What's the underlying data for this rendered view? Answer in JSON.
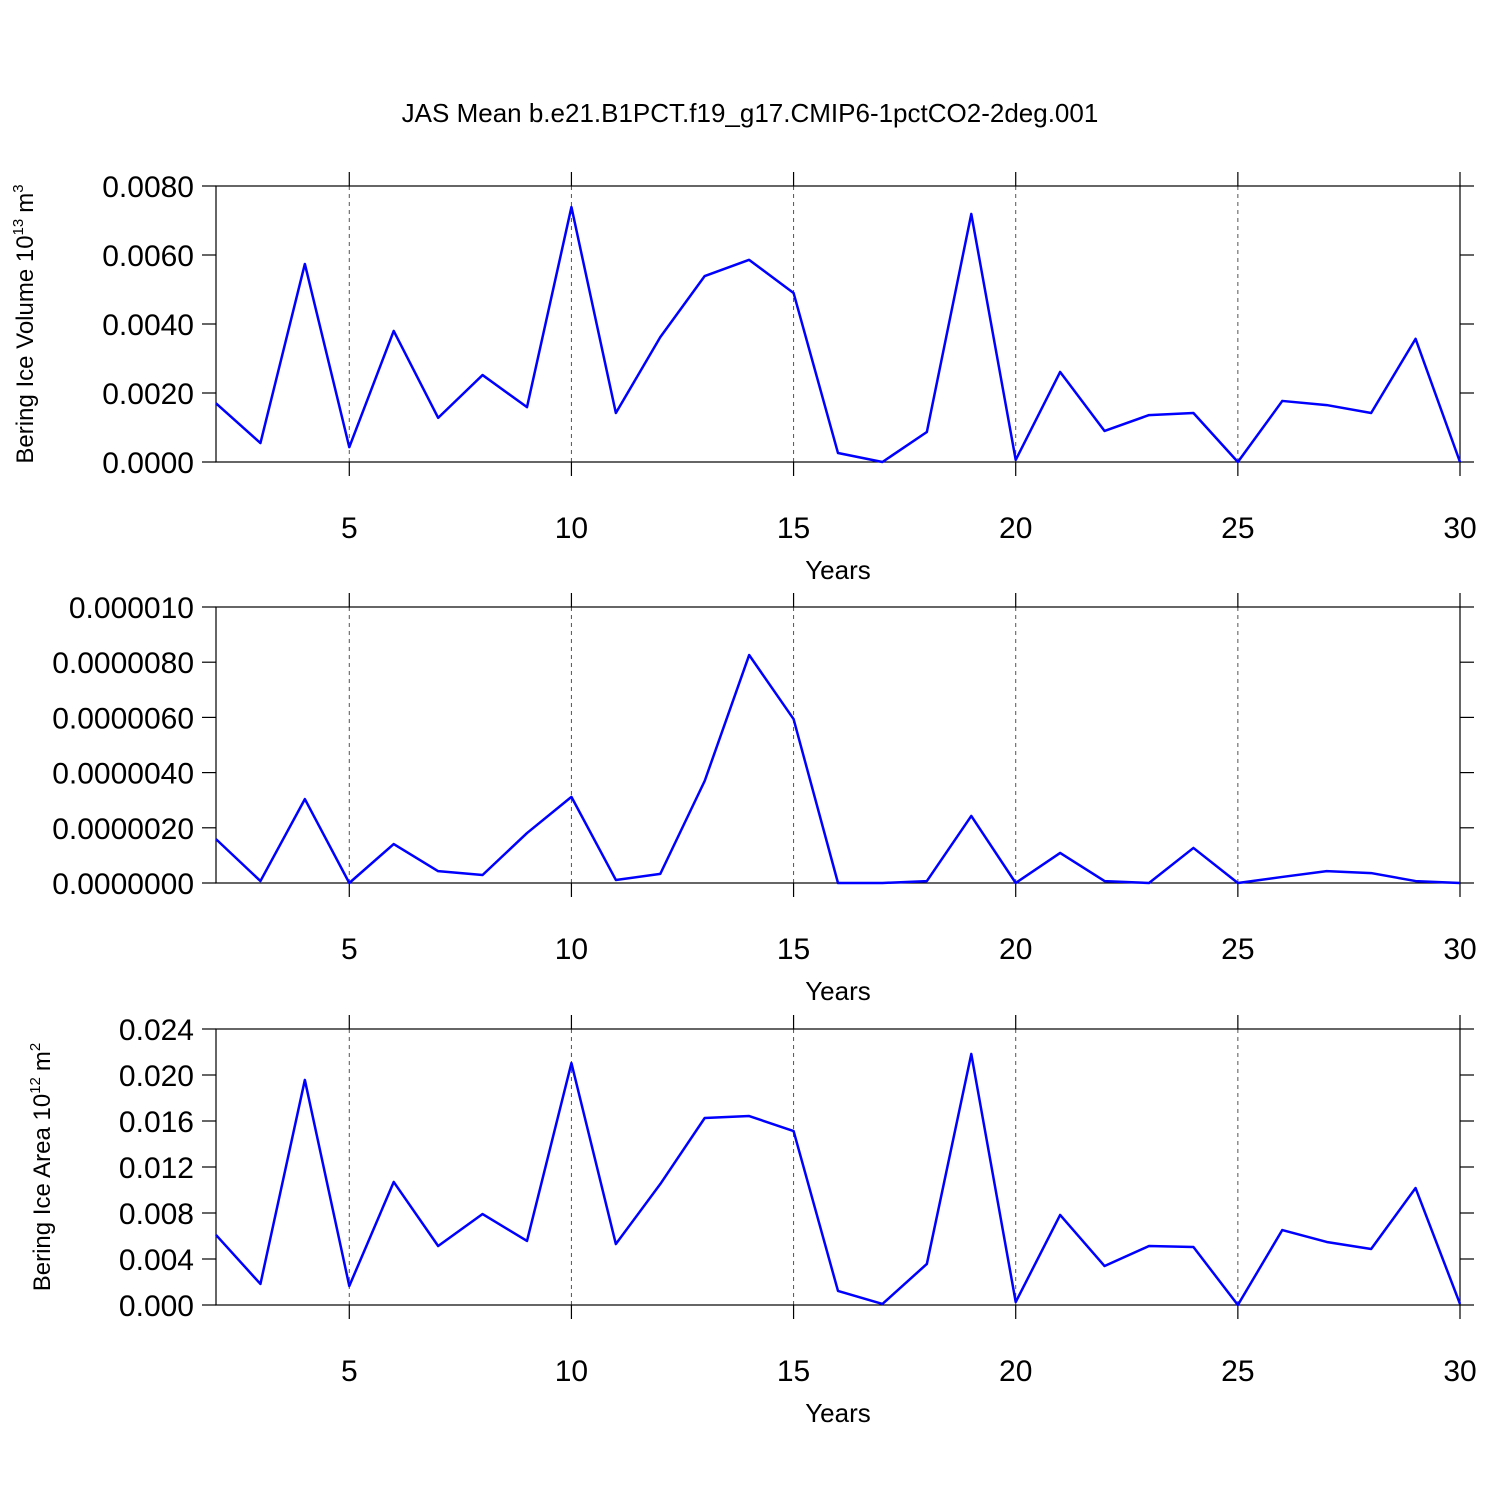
{
  "chart_data": [
    {
      "type": "line",
      "title": "JAS Mean b.e21.B1PCT.f19_g17.CMIP6-1pctCO2-2deg.001",
      "ylabel": {
        "text": "Bering Ice Volume 10",
        "sup": "13",
        "unit": "m",
        "unit_sup": "3"
      },
      "xlabel": "Years",
      "color": "#0000ff",
      "xgrid": true,
      "x": [
        2,
        3,
        4,
        5,
        6,
        7,
        8,
        9,
        10,
        11,
        12,
        13,
        14,
        15,
        16,
        17,
        18,
        19,
        20,
        21,
        22,
        23,
        24,
        25,
        26,
        27,
        28,
        29,
        30
      ],
      "values": [
        0.0017,
        0.00055,
        0.00574,
        0.00043,
        0.0038,
        0.00128,
        0.00252,
        0.00159,
        0.00739,
        0.00142,
        0.00362,
        0.00539,
        0.00586,
        0.0049,
        0.00026,
        0,
        0.00087,
        0.00719,
        6e-05,
        0.00261,
        0.0009,
        0.00136,
        0.00142,
        0,
        0.00177,
        0.00165,
        0.00142,
        0.00357,
        0
      ],
      "xlim": [
        2,
        30
      ],
      "xticks": [
        5,
        10,
        15,
        20,
        25,
        30
      ],
      "ylim": [
        0,
        0.008
      ],
      "yticks": [
        {
          "value": 0,
          "label": "0.0000"
        },
        {
          "value": 0.002,
          "label": "0.0020"
        },
        {
          "value": 0.004,
          "label": "0.0040"
        },
        {
          "value": 0.006,
          "label": "0.0060"
        },
        {
          "value": 0.008,
          "label": "0.0080"
        }
      ]
    },
    {
      "type": "line",
      "xlabel": "Years",
      "color": "#0000ff",
      "xgrid": true,
      "x": [
        2,
        3,
        4,
        5,
        6,
        7,
        8,
        9,
        10,
        11,
        12,
        13,
        14,
        15,
        16,
        17,
        18,
        19,
        20,
        21,
        22,
        23,
        24,
        25,
        26,
        27,
        28,
        29,
        30
      ],
      "values": [
        1.59e-06,
        7e-08,
        3.04e-06,
        0,
        1.41e-06,
        4.3e-07,
        2.9e-07,
        1.81e-06,
        3.12e-06,
        1.1e-07,
        3.3e-07,
        3.7e-06,
        8.26e-06,
        5.94e-06,
        0,
        0,
        7e-08,
        2.43e-06,
        0,
        1.09e-06,
        7e-08,
        0,
        1.27e-06,
        0,
        2.2e-07,
        4.3e-07,
        3.6e-07,
        7e-08,
        0
      ],
      "xlim": [
        2,
        30
      ],
      "xticks": [
        5,
        10,
        15,
        20,
        25,
        30
      ],
      "ylim": [
        0,
        1e-05
      ],
      "yticks": [
        {
          "value": 0,
          "label": "0.0000000"
        },
        {
          "value": 2e-06,
          "label": "0.0000020"
        },
        {
          "value": 4e-06,
          "label": "0.0000040"
        },
        {
          "value": 6e-06,
          "label": "0.0000060"
        },
        {
          "value": 8e-06,
          "label": "0.0000080"
        },
        {
          "value": 1e-05,
          "label": "0.000010"
        }
      ]
    },
    {
      "type": "line",
      "ylabel": {
        "text": "Bering Ice Area 10",
        "sup": "12",
        "unit": "m",
        "unit_sup": "2"
      },
      "xlabel": "Years",
      "color": "#0000ff",
      "xgrid": true,
      "x": [
        2,
        3,
        4,
        5,
        6,
        7,
        8,
        9,
        10,
        11,
        12,
        13,
        14,
        15,
        16,
        17,
        18,
        19,
        20,
        21,
        22,
        23,
        24,
        25,
        26,
        27,
        28,
        29,
        30
      ],
      "values": [
        0.00609,
        0.00183,
        0.01957,
        0.00165,
        0.0107,
        0.00513,
        0.00791,
        0.00557,
        0.02104,
        0.0053,
        0.01052,
        0.01626,
        0.01643,
        0.01513,
        0.00122,
        9e-05,
        0.00357,
        0.02183,
        0.00026,
        0.00783,
        0.00339,
        0.00513,
        0.00504,
        0,
        0.00652,
        0.00548,
        0.00487,
        0.01017,
        9e-05
      ],
      "xlim": [
        2,
        30
      ],
      "xticks": [
        5,
        10,
        15,
        20,
        25,
        30
      ],
      "ylim": [
        0,
        0.024
      ],
      "yticks": [
        {
          "value": 0,
          "label": "0.000"
        },
        0.004,
        {
          "value": 0.008,
          "label": "0.008"
        },
        0.012,
        0.016,
        {
          "value": 0.02,
          "label": "0.020"
        },
        0.024
      ]
    }
  ]
}
